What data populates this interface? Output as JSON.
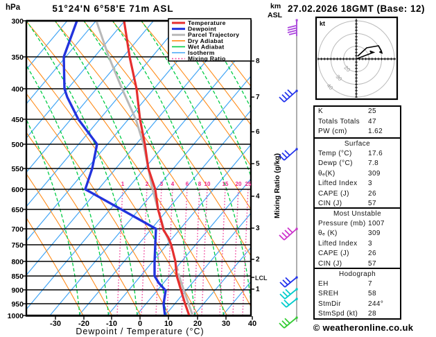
{
  "header": {
    "pressure_unit": "hPa",
    "station_title": "51°24'N 6°58'E 71m ASL",
    "datetime_title": "27.02.2026 18GMT (Base: 12)"
  },
  "legend": {
    "items": [
      {
        "label": "Temperature",
        "color": "#e62e2e",
        "style": "solid"
      },
      {
        "label": "Dewpoint",
        "color": "#2233dd",
        "style": "solid"
      },
      {
        "label": "Parcel Trajectory",
        "color": "#b8b8b8",
        "style": "solid"
      },
      {
        "label": "Dry Adiabat",
        "color": "#ff8c1a",
        "style": "solid"
      },
      {
        "label": "Wet Adiabat",
        "color": "#00cc44",
        "style": "dashed"
      },
      {
        "label": "Isotherm",
        "color": "#42a5f5",
        "style": "solid"
      },
      {
        "label": "Mixing Ratio",
        "color": "#f050a0",
        "style": "dotted"
      }
    ]
  },
  "axes": {
    "pressure_ticks": [
      "300",
      "350",
      "400",
      "450",
      "500",
      "550",
      "600",
      "650",
      "700",
      "750",
      "800",
      "850",
      "900",
      "950",
      "1000"
    ],
    "temp_ticks": [
      "-30",
      "-20",
      "-10",
      "0",
      "10",
      "20",
      "30",
      "40"
    ],
    "xlabel": "Dewpoint / Temperature (°C)",
    "km_unit": "km",
    "asl_unit": "ASL",
    "km_ticks": [
      "8",
      "7",
      "6",
      "5",
      "4",
      "3",
      "2",
      "1"
    ],
    "lcl_label": "LCL",
    "mixing_axis_label": "Mixing Ratio (g/kg)",
    "mixing_ticks": [
      "1",
      "2",
      "3",
      "4",
      "6",
      "8",
      "10",
      "15",
      "20",
      "25"
    ]
  },
  "hodograph": {
    "unit_label": "kt",
    "ring_labels": [
      "20",
      "30",
      "40"
    ]
  },
  "stats": {
    "indices": {
      "rows": [
        {
          "label": "K",
          "value": "25"
        },
        {
          "label": "Totals Totals",
          "value": "47"
        },
        {
          "label": "PW (cm)",
          "value": "1.62"
        }
      ]
    },
    "surface": {
      "title": "Surface",
      "rows": [
        {
          "label": "Temp (°C)",
          "value": "17.6"
        },
        {
          "label": "Dewp (°C)",
          "value": "7.8"
        },
        {
          "label": "θₑ(K)",
          "value": "309"
        },
        {
          "label": "Lifted Index",
          "value": "3"
        },
        {
          "label": "CAPE (J)",
          "value": "26"
        },
        {
          "label": "CIN (J)",
          "value": "57"
        }
      ]
    },
    "most_unstable": {
      "title": "Most Unstable",
      "rows": [
        {
          "label": "Pressure (mb)",
          "value": "1007"
        },
        {
          "label": "θₑ (K)",
          "value": "309"
        },
        {
          "label": "Lifted Index",
          "value": "3"
        },
        {
          "label": "CAPE (J)",
          "value": "26"
        },
        {
          "label": "CIN (J)",
          "value": "57"
        }
      ]
    },
    "hodograph_box": {
      "title": "Hodograph",
      "rows": [
        {
          "label": "EH",
          "value": "7"
        },
        {
          "label": "SREH",
          "value": "58"
        },
        {
          "label": "StmDir",
          "value": "244°"
        },
        {
          "label": "StmSpd (kt)",
          "value": "28"
        }
      ]
    }
  },
  "footer": {
    "credit": "© weatheronline.co.uk"
  },
  "colors": {
    "temperature": "#e62e2e",
    "dewpoint": "#2233dd",
    "parcel": "#b8b8b8",
    "dry_adiabat": "#ff8c1a",
    "wet_adiabat": "#00cc44",
    "isotherm": "#42a5f5",
    "mixing_ratio": "#f050a0",
    "barb_300": "#aa44dd",
    "barb_mid": "#2233ee",
    "barb_700": "#cc33cc",
    "barb_low": "#00cccc",
    "barb_sfc": "#33cc33"
  },
  "chart_data": {
    "type": "line",
    "subtype": "skew-t-log-p sounding",
    "title": "51°24'N 6°58'E 71m ASL",
    "xlabel": "Dewpoint / Temperature (°C)",
    "ylabel": "hPa",
    "x_range": [
      -40,
      40
    ],
    "pressure_range_hPa": [
      1000,
      300
    ],
    "pressure_scale": "log",
    "altitude_ticks_km": [
      1,
      2,
      3,
      4,
      5,
      6,
      7,
      8
    ],
    "mixing_ratio_lines_g_per_kg": [
      1,
      2,
      3,
      4,
      6,
      8,
      10,
      15,
      20,
      25
    ],
    "series": [
      {
        "name": "Temperature",
        "color": "#e62e2e",
        "pressure_hPa": [
          1000,
          950,
          900,
          850,
          800,
          750,
          700,
          650,
          600,
          550,
          500,
          450,
          400,
          350,
          300
        ],
        "temp_C": [
          17.6,
          12.3,
          6.8,
          1.3,
          -3.4,
          -9.7,
          -17,
          -24.6,
          -31.4,
          -39.9,
          -48.2,
          -57.2,
          -67.3,
          -79,
          -91
        ]
      },
      {
        "name": "Dewpoint",
        "color": "#2233dd",
        "pressure_hPa": [
          1000,
          950,
          900,
          850,
          800,
          750,
          700,
          650,
          600,
          550,
          500,
          450,
          400,
          350,
          300
        ],
        "temp_C": [
          7.8,
          4.9,
          1.5,
          -6.4,
          -10.6,
          -15.2,
          -19.6,
          -37.3,
          -55.8,
          -59.4,
          -64.8,
          -78.6,
          -92.3,
          -101.9,
          -107.8
        ]
      },
      {
        "name": "Parcel Trajectory",
        "color": "#b8b8b8",
        "pressure_hPa": [
          1000,
          900,
          850,
          700,
          600,
          500,
          400,
          300
        ],
        "temp_C": [
          18.9,
          4.5,
          -1.4,
          -18.9,
          -32.4,
          -48.7,
          -71.5,
          -101
        ]
      }
    ],
    "lcl_pressure_hPa": 905,
    "wind_barbs": [
      {
        "pressure_hPa": 300,
        "color": "#aa44dd",
        "feathers": 4
      },
      {
        "pressure_hPa": 400,
        "color": "#2233ee",
        "feathers": 4
      },
      {
        "pressure_hPa": 500,
        "color": "#2233ee",
        "feathers": 3
      },
      {
        "pressure_hPa": 700,
        "color": "#cc33cc",
        "feathers": 4
      },
      {
        "pressure_hPa": 880,
        "color": "#2233ee",
        "feathers": 3
      },
      {
        "pressure_hPa": 920,
        "color": "#00cccc",
        "feathers": 3
      },
      {
        "pressure_hPa": 950,
        "color": "#00cccc",
        "feathers": 2
      },
      {
        "pressure_hPa": 1007,
        "color": "#33cc33",
        "feathers": 3
      }
    ],
    "hodograph": {
      "unit": "kt",
      "rings_kt": [
        20,
        30,
        40
      ],
      "trace_u_v_kt": [
        [
          0,
          0
        ],
        [
          14,
          5
        ],
        [
          20,
          11
        ],
        [
          21,
          6
        ]
      ]
    },
    "indices": {
      "K": 25,
      "Totals_Totals": 47,
      "PW_cm": 1.62,
      "surface": {
        "Temp_C": 17.6,
        "Dewp_C": 7.8,
        "ThetaE_K": 309,
        "Lifted_Index": 3,
        "CAPE_J": 26,
        "CIN_J": 57
      },
      "most_unstable": {
        "Pressure_mb": 1007,
        "ThetaE_K": 309,
        "Lifted_Index": 3,
        "CAPE_J": 26,
        "CIN_J": 57
      },
      "hodograph": {
        "EH": 7,
        "SREH": 58,
        "StmDir_deg": 244,
        "StmSpd_kt": 28
      }
    }
  }
}
